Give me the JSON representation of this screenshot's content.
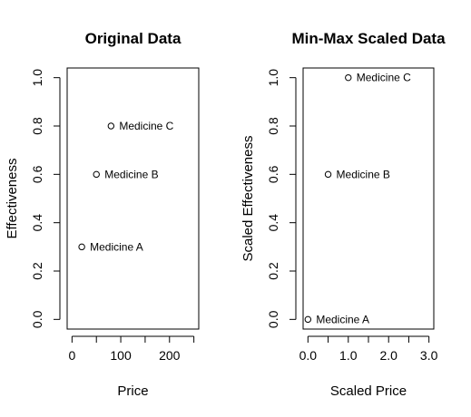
{
  "chart_data": [
    {
      "type": "scatter",
      "title": "Original Data",
      "xlabel": "Price",
      "ylabel": "Effectiveness",
      "xlim": [
        -10,
        260
      ],
      "ylim": [
        -0.04,
        1.04
      ],
      "xticks": [
        0,
        50,
        100,
        150,
        200,
        250
      ],
      "xtick_labels": [
        "0",
        "",
        "100",
        "",
        "200",
        ""
      ],
      "yticks": [
        0.0,
        0.2,
        0.4,
        0.6,
        0.8,
        1.0
      ],
      "ytick_labels": [
        "0.0",
        "0.2",
        "0.4",
        "0.6",
        "0.8",
        "1.0"
      ],
      "points": [
        {
          "x": 20,
          "y": 0.3,
          "label": "Medicine A"
        },
        {
          "x": 50,
          "y": 0.6,
          "label": "Medicine B"
        },
        {
          "x": 80,
          "y": 0.8,
          "label": "Medicine C"
        }
      ],
      "grid": false
    },
    {
      "type": "scatter",
      "title": "Min-Max Scaled Data",
      "xlabel": "Scaled Price",
      "ylabel": "Scaled Effectiveness",
      "xlim": [
        -0.12,
        3.12
      ],
      "ylim": [
        -0.04,
        1.04
      ],
      "xticks": [
        0.0,
        0.5,
        1.0,
        1.5,
        2.0,
        2.5,
        3.0
      ],
      "xtick_labels": [
        "0.0",
        "",
        "1.0",
        "",
        "2.0",
        "",
        "3.0"
      ],
      "yticks": [
        0.0,
        0.2,
        0.4,
        0.6,
        0.8,
        1.0
      ],
      "ytick_labels": [
        "0.0",
        "0.2",
        "0.4",
        "0.6",
        "0.8",
        "1.0"
      ],
      "points": [
        {
          "x": 0.0,
          "y": 0.0,
          "label": "Medicine A"
        },
        {
          "x": 0.5,
          "y": 0.6,
          "label": "Medicine B"
        },
        {
          "x": 1.0,
          "y": 1.0,
          "label": "Medicine C"
        }
      ],
      "grid": false
    }
  ]
}
